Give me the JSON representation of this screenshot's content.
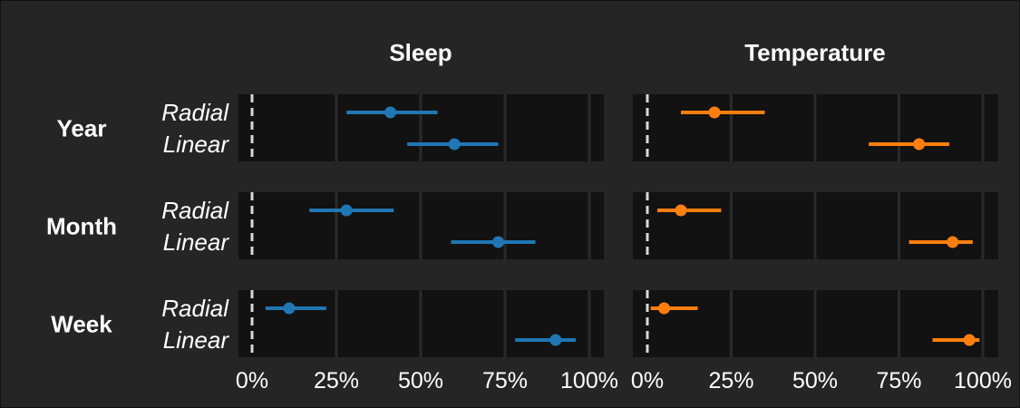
{
  "chart_data": {
    "type": "dot-interval",
    "columns": [
      "Sleep",
      "Temperature"
    ],
    "rows": [
      "Year",
      "Month",
      "Week"
    ],
    "methods": [
      "Radial",
      "Linear"
    ],
    "x_ticks": [
      "0%",
      "25%",
      "50%",
      "75%",
      "100%"
    ],
    "xlim": [
      0,
      100
    ],
    "reference_line": 0,
    "grid": true,
    "colors": {
      "Sleep": "#1f77b4",
      "Temperature": "#ff7f0e"
    },
    "points": [
      {
        "column": "Sleep",
        "row": "Year",
        "method": "Radial",
        "estimate": 41,
        "low": 28,
        "high": 55
      },
      {
        "column": "Sleep",
        "row": "Year",
        "method": "Linear",
        "estimate": 60,
        "low": 46,
        "high": 73
      },
      {
        "column": "Sleep",
        "row": "Month",
        "method": "Radial",
        "estimate": 28,
        "low": 17,
        "high": 42
      },
      {
        "column": "Sleep",
        "row": "Month",
        "method": "Linear",
        "estimate": 73,
        "low": 59,
        "high": 84
      },
      {
        "column": "Sleep",
        "row": "Week",
        "method": "Radial",
        "estimate": 11,
        "low": 4,
        "high": 22
      },
      {
        "column": "Sleep",
        "row": "Week",
        "method": "Linear",
        "estimate": 90,
        "low": 78,
        "high": 96
      },
      {
        "column": "Temperature",
        "row": "Year",
        "method": "Radial",
        "estimate": 20,
        "low": 10,
        "high": 35
      },
      {
        "column": "Temperature",
        "row": "Year",
        "method": "Linear",
        "estimate": 81,
        "low": 66,
        "high": 90
      },
      {
        "column": "Temperature",
        "row": "Month",
        "method": "Radial",
        "estimate": 10,
        "low": 3,
        "high": 22
      },
      {
        "column": "Temperature",
        "row": "Month",
        "method": "Linear",
        "estimate": 91,
        "low": 78,
        "high": 97
      },
      {
        "column": "Temperature",
        "row": "Week",
        "method": "Radial",
        "estimate": 5,
        "low": 1,
        "high": 15
      },
      {
        "column": "Temperature",
        "row": "Week",
        "method": "Linear",
        "estimate": 96,
        "low": 85,
        "high": 99
      }
    ]
  }
}
